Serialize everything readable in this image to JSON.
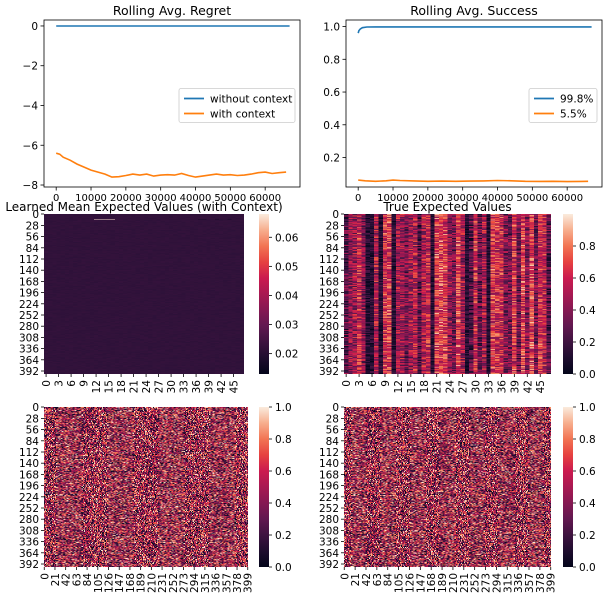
{
  "figure": {
    "background": "#ffffff"
  },
  "colors": {
    "blue": "#1f77b4",
    "orange": "#ff7f0e"
  },
  "chart_data": [
    {
      "id": "regret",
      "type": "line",
      "title": "Rolling Avg. Regret",
      "xlim": [
        -3500,
        70000
      ],
      "ylim": [
        -8.1,
        0.3
      ],
      "xticks": [
        0,
        10000,
        20000,
        30000,
        40000,
        50000,
        60000
      ],
      "yticks": [
        0,
        -2,
        -4,
        -6,
        -8
      ],
      "legend_position": "center-right",
      "series": [
        {
          "name": "without context",
          "color": "#1f77b4",
          "x": [
            0,
            67000
          ],
          "y": [
            0,
            0
          ]
        },
        {
          "name": "with context",
          "color": "#ff7f0e",
          "x": [
            0,
            1000,
            2000,
            4000,
            6000,
            8000,
            10000,
            12000,
            14000,
            16000,
            18000,
            20000,
            22000,
            24000,
            26000,
            28000,
            30000,
            32000,
            34000,
            36000,
            38000,
            40000,
            42000,
            44000,
            46000,
            48000,
            50000,
            52000,
            54000,
            56000,
            58000,
            60000,
            62000,
            64000,
            66000
          ],
          "y": [
            -6.4,
            -6.45,
            -6.6,
            -6.75,
            -6.95,
            -7.1,
            -7.25,
            -7.35,
            -7.45,
            -7.6,
            -7.58,
            -7.52,
            -7.45,
            -7.5,
            -7.45,
            -7.55,
            -7.5,
            -7.48,
            -7.5,
            -7.42,
            -7.52,
            -7.6,
            -7.55,
            -7.5,
            -7.45,
            -7.5,
            -7.48,
            -7.52,
            -7.5,
            -7.45,
            -7.38,
            -7.35,
            -7.42,
            -7.38,
            -7.35
          ]
        }
      ]
    },
    {
      "id": "success",
      "type": "line",
      "title": "Rolling Avg. Success",
      "xlim": [
        -3500,
        70000
      ],
      "ylim": [
        0.02,
        1.04
      ],
      "xticks": [
        0,
        10000,
        20000,
        30000,
        40000,
        50000,
        60000
      ],
      "yticks": [
        1.0,
        0.8,
        0.6,
        0.4,
        0.2
      ],
      "legend_position": "center-right",
      "series": [
        {
          "name": "99.8%",
          "color": "#1f77b4",
          "x": [
            0,
            200,
            600,
            1200,
            2500,
            5000,
            67000
          ],
          "y": [
            0.96,
            0.975,
            0.985,
            0.993,
            0.997,
            0.998,
            0.998
          ]
        },
        {
          "name": "5.5%",
          "color": "#ff7f0e",
          "x": [
            0,
            2000,
            5000,
            8000,
            10000,
            12000,
            16000,
            20000,
            24000,
            28000,
            32000,
            36000,
            40000,
            44000,
            48000,
            52000,
            56000,
            60000,
            64000,
            66000
          ],
          "y": [
            0.062,
            0.058,
            0.055,
            0.058,
            0.062,
            0.06,
            0.057,
            0.055,
            0.056,
            0.055,
            0.056,
            0.057,
            0.06,
            0.058,
            0.055,
            0.054,
            0.055,
            0.053,
            0.054,
            0.055
          ]
        }
      ]
    },
    {
      "id": "learned",
      "type": "heatmap",
      "title": "Learned Mean Expected Values (with Context)",
      "rows": 400,
      "cols": 48,
      "ytick_labels": [
        "0",
        "28",
        "56",
        "84",
        "112",
        "140",
        "168",
        "196",
        "224",
        "252",
        "280",
        "308",
        "336",
        "364",
        "392"
      ],
      "xtick_labels": [
        "0",
        "3",
        "6",
        "9",
        "12",
        "15",
        "18",
        "21",
        "24",
        "27",
        "30",
        "33",
        "36",
        "39",
        "42",
        "45"
      ],
      "colorbar_ticks": [
        0.06,
        0.05,
        0.04,
        0.03,
        0.02
      ],
      "vmin": 0.013,
      "vmax": 0.068,
      "base_value": 0.022,
      "notes": [
        {
          "row": 13,
          "col": 3,
          "value": 0.066
        }
      ]
    },
    {
      "id": "true",
      "type": "heatmap",
      "title": "True Expected Values",
      "rows": 400,
      "cols": 48,
      "ytick_labels": [
        "0",
        "28",
        "56",
        "84",
        "112",
        "140",
        "168",
        "196",
        "224",
        "252",
        "280",
        "308",
        "336",
        "364",
        "392"
      ],
      "xtick_labels": [
        "0",
        "3",
        "6",
        "9",
        "12",
        "15",
        "18",
        "21",
        "24",
        "27",
        "30",
        "33",
        "36",
        "39",
        "42",
        "45"
      ],
      "colorbar_ticks": [
        0.8,
        0.6,
        0.4,
        0.2,
        0.0
      ],
      "vmin": 0.0,
      "vmax": 1.0,
      "dark_columns": [
        5,
        6,
        8,
        11,
        20,
        28,
        33
      ]
    },
    {
      "id": "noise_left",
      "type": "heatmap",
      "title": "",
      "rows": 400,
      "cols": 400,
      "ytick_labels": [
        "0",
        "28",
        "56",
        "84",
        "112",
        "140",
        "168",
        "196",
        "224",
        "252",
        "280",
        "308",
        "336",
        "364",
        "392"
      ],
      "xtick_labels": [
        "0",
        "21",
        "42",
        "63",
        "84",
        "105",
        "126",
        "147",
        "168",
        "189",
        "210",
        "231",
        "252",
        "273",
        "294",
        "315",
        "336",
        "357",
        "378",
        "399"
      ],
      "colorbar_ticks": [
        1.0,
        0.8,
        0.6,
        0.4,
        0.2,
        0.0
      ],
      "vmin": 0.0,
      "vmax": 1.0
    },
    {
      "id": "noise_right",
      "type": "heatmap",
      "title": "",
      "rows": 400,
      "cols": 400,
      "ytick_labels": [
        "0",
        "28",
        "56",
        "84",
        "112",
        "140",
        "168",
        "196",
        "224",
        "252",
        "280",
        "308",
        "336",
        "364",
        "392"
      ],
      "xtick_labels": [
        "0",
        "21",
        "42",
        "63",
        "84",
        "105",
        "126",
        "147",
        "168",
        "189",
        "210",
        "231",
        "252",
        "273",
        "294",
        "315",
        "336",
        "357",
        "378",
        "399"
      ],
      "colorbar_ticks": [
        1.0,
        0.8,
        0.6,
        0.4,
        0.2,
        0.0
      ],
      "vmin": 0.0,
      "vmax": 1.0
    }
  ]
}
